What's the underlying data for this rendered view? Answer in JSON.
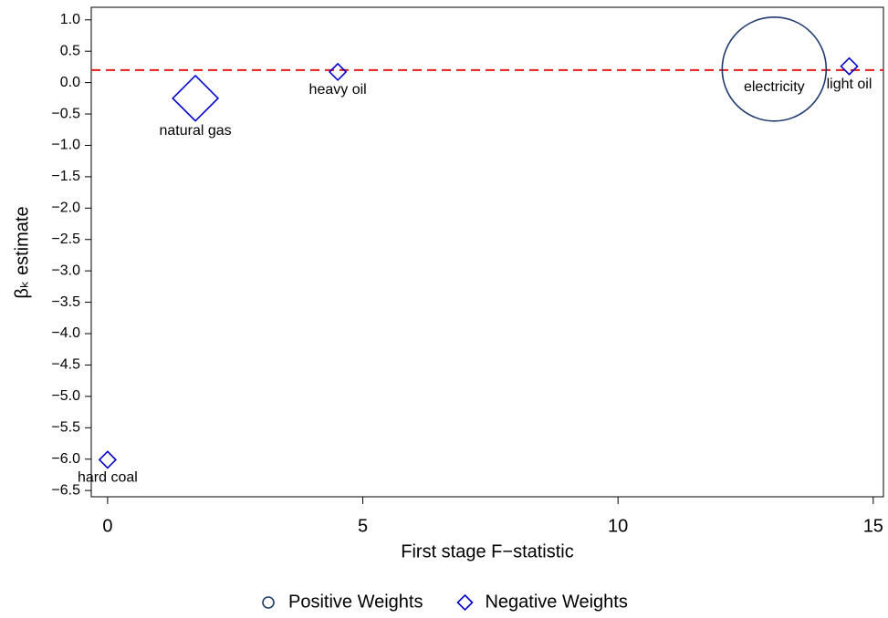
{
  "chart_data": {
    "type": "bubble",
    "xlabel": "First stage F−statistic",
    "ylabel": "βₖ estimate",
    "xlim": [
      -0.32,
      15.2
    ],
    "ylim": [
      -6.6,
      1.2
    ],
    "xticks": [
      0,
      5,
      10,
      15
    ],
    "yticks": [
      {
        "value": 1.0,
        "label": "1.0"
      },
      {
        "value": 0.5,
        "label": "0.5"
      },
      {
        "value": 0.0,
        "label": "0.0"
      },
      {
        "value": -0.5,
        "label": "−0.5"
      },
      {
        "value": -1.0,
        "label": "−1.0"
      },
      {
        "value": -1.5,
        "label": "−1.5"
      },
      {
        "value": -2.0,
        "label": "−2.0"
      },
      {
        "value": -2.5,
        "label": "−2.5"
      },
      {
        "value": -3.0,
        "label": "−3.0"
      },
      {
        "value": -3.5,
        "label": "−3.5"
      },
      {
        "value": -4.0,
        "label": "−4.0"
      },
      {
        "value": -4.5,
        "label": "−4.5"
      },
      {
        "value": -5.0,
        "label": "−5.0"
      },
      {
        "value": -5.5,
        "label": "−5.5"
      },
      {
        "value": -6.0,
        "label": "−6.0"
      },
      {
        "value": -6.5,
        "label": "−6.5"
      }
    ],
    "reference_line": {
      "value": 0.2,
      "color": "#e41a1c",
      "style": "dashed"
    },
    "legend": "bottom",
    "series": [
      {
        "name": "Positive Weights",
        "marker": "circle",
        "color": "#1f3b6e",
        "x": [
          13.06
        ],
        "values": [
          0.215
        ],
        "sizes": [
          1.0
        ],
        "labels": [
          "electricity"
        ]
      },
      {
        "name": "Negative Weights",
        "marker": "diamond",
        "color": "#0000cc",
        "x": [
          0.0,
          1.72,
          4.51,
          14.53
        ],
        "values": [
          -6.01,
          -0.25,
          0.17,
          0.26
        ],
        "sizes": [
          0.025,
          0.19,
          0.025,
          0.025
        ],
        "labels": [
          "hard coal",
          "natural gas",
          "heavy oil",
          "light oil"
        ]
      }
    ]
  }
}
